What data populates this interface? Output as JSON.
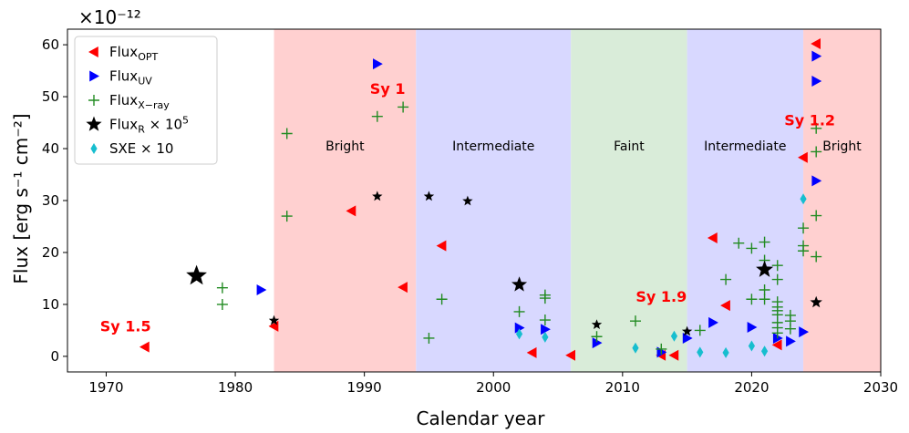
{
  "chart_data": {
    "type": "scatter",
    "xlabel": "Calendar year",
    "ylabel": "Flux [erg s⁻¹ cm⁻²]",
    "y_exponent_label": "×10⁻¹²",
    "xlim": [
      1967,
      2030
    ],
    "ylim": [
      -3,
      63
    ],
    "xticks": [
      1970,
      1980,
      1990,
      2000,
      2010,
      2020,
      2030
    ],
    "yticks": [
      0,
      10,
      20,
      30,
      40,
      50,
      60
    ],
    "legend_position": "top-left",
    "bands": [
      {
        "x0": 1983,
        "x1": 1994,
        "label": "Bright",
        "color": "#ffd0d0",
        "label_x": 1988.5,
        "label_y": 40.5
      },
      {
        "x0": 1994,
        "x1": 2006,
        "label": "Intermediate",
        "color": "#d8d8ff",
        "label_x": 2000,
        "label_y": 40.5
      },
      {
        "x0": 2006,
        "x1": 2015,
        "label": "Faint",
        "color": "#d9ecd9",
        "label_x": 2010.5,
        "label_y": 40.5
      },
      {
        "x0": 2015,
        "x1": 2024,
        "label": "Intermediate",
        "color": "#d8d8ff",
        "label_x": 2019.5,
        "label_y": 40.5
      },
      {
        "x0": 2024,
        "x1": 2030,
        "label": "Bright",
        "color": "#ffd0d0",
        "label_x": 2027,
        "label_y": 40.5
      }
    ],
    "annotations": [
      {
        "text": "Sy 1.5",
        "x": 1971.5,
        "y": 4.8,
        "color": "#ff0000"
      },
      {
        "text": "Sy 1",
        "x": 1991.8,
        "y": 50.5,
        "color": "#ff0000"
      },
      {
        "text": "Sy 1.9",
        "x": 2013,
        "y": 10.5,
        "color": "#ff0000"
      },
      {
        "text": "Sy 1.2",
        "x": 2024.5,
        "y": 44.5,
        "color": "#ff0000"
      }
    ],
    "series": [
      {
        "name": "Flux_OPT",
        "legend_main": "Flux",
        "legend_sub": "OPT",
        "legend_sup": "",
        "marker": "triangle-left",
        "color": "#ff0000",
        "size": 6,
        "points": [
          [
            1973,
            1.8
          ],
          [
            1983,
            5.8
          ],
          [
            1989,
            28
          ],
          [
            1993,
            13.3
          ],
          [
            1996,
            21.3
          ],
          [
            2003,
            0.7
          ],
          [
            2006,
            0.2
          ],
          [
            2013,
            0.2
          ],
          [
            2014,
            0.2
          ],
          [
            2017,
            22.8
          ],
          [
            2018,
            9.8
          ],
          [
            2022,
            2.2
          ],
          [
            2024,
            38.3
          ],
          [
            2025,
            60.2
          ]
        ]
      },
      {
        "name": "Flux_UV",
        "legend_main": "Flux",
        "legend_sub": "UV",
        "legend_sup": "",
        "marker": "triangle-right",
        "color": "#0000ff",
        "size": 6,
        "points": [
          [
            1982,
            12.8
          ],
          [
            1991,
            56.3
          ],
          [
            2002,
            5.5
          ],
          [
            2004,
            5.2
          ],
          [
            2008,
            2.6
          ],
          [
            2013,
            0.8
          ],
          [
            2015,
            3.5
          ],
          [
            2017,
            6.5
          ],
          [
            2020,
            5.6
          ],
          [
            2022,
            3.5
          ],
          [
            2023,
            2.9
          ],
          [
            2024,
            4.7
          ],
          [
            2025,
            57.8
          ],
          [
            2025,
            53
          ],
          [
            2025,
            33.8
          ]
        ]
      },
      {
        "name": "Flux_X-ray",
        "legend_main": "Flux",
        "legend_sub": "X−ray",
        "legend_sup": "",
        "marker": "plus",
        "color": "#228b22",
        "size": 6,
        "points": [
          [
            1979,
            13.2
          ],
          [
            1979,
            10
          ],
          [
            1984,
            42.9
          ],
          [
            1984,
            27
          ],
          [
            1991,
            46.2
          ],
          [
            1993,
            48
          ],
          [
            1995,
            3.5
          ],
          [
            1996,
            11
          ],
          [
            2002,
            8.6
          ],
          [
            2004,
            11.8
          ],
          [
            2004,
            11.2
          ],
          [
            2004,
            7
          ],
          [
            2008,
            3.8
          ],
          [
            2011,
            6.8
          ],
          [
            2013,
            1.4
          ],
          [
            2016,
            5
          ],
          [
            2018,
            14.8
          ],
          [
            2019,
            21.8
          ],
          [
            2020,
            20.8
          ],
          [
            2020,
            11
          ],
          [
            2021,
            22
          ],
          [
            2021,
            18.5
          ],
          [
            2021,
            12.8
          ],
          [
            2021,
            11
          ],
          [
            2022,
            17.5
          ],
          [
            2022,
            14.8
          ],
          [
            2022,
            10.5
          ],
          [
            2022,
            9.5
          ],
          [
            2022,
            8.8
          ],
          [
            2022,
            8
          ],
          [
            2022,
            6.5
          ],
          [
            2022,
            5.5
          ],
          [
            2022,
            4.5
          ],
          [
            2023,
            7.9
          ],
          [
            2023,
            6.8
          ],
          [
            2023,
            5.3
          ],
          [
            2024,
            24.7
          ],
          [
            2024,
            21.3
          ],
          [
            2024,
            20.3
          ],
          [
            2025,
            43.9
          ],
          [
            2025,
            39.4
          ],
          [
            2025,
            27.1
          ],
          [
            2025,
            19.2
          ]
        ]
      },
      {
        "name": "Flux_R × 10^5",
        "legend_main": "Flux",
        "legend_sub": "R",
        "legend_sup": "5",
        "legend_mid": " × 10",
        "marker": "star",
        "color": "#000000",
        "size": 6,
        "points": [
          [
            1977,
            15.5,
            12
          ],
          [
            1983,
            6.9,
            6
          ],
          [
            1991,
            30.8,
            6
          ],
          [
            1995,
            30.8,
            6
          ],
          [
            1998,
            29.9,
            6
          ],
          [
            2002,
            13.8,
            9
          ],
          [
            2008,
            6.1,
            6
          ],
          [
            2015,
            4.8,
            6
          ],
          [
            2021,
            16.7,
            10
          ],
          [
            2025,
            10.4,
            7
          ]
        ]
      },
      {
        "name": "SXE × 10",
        "legend_main": "SXE × 10",
        "legend_sub": "",
        "legend_sup": "",
        "marker": "diamond",
        "color": "#17becf",
        "size": 6,
        "points": [
          [
            2002,
            4.3
          ],
          [
            2004,
            3.7
          ],
          [
            2011,
            1.6
          ],
          [
            2014,
            3.9
          ],
          [
            2016,
            0.8
          ],
          [
            2018,
            0.7
          ],
          [
            2020,
            2
          ],
          [
            2021,
            1
          ],
          [
            2024,
            30.3
          ]
        ]
      }
    ]
  }
}
